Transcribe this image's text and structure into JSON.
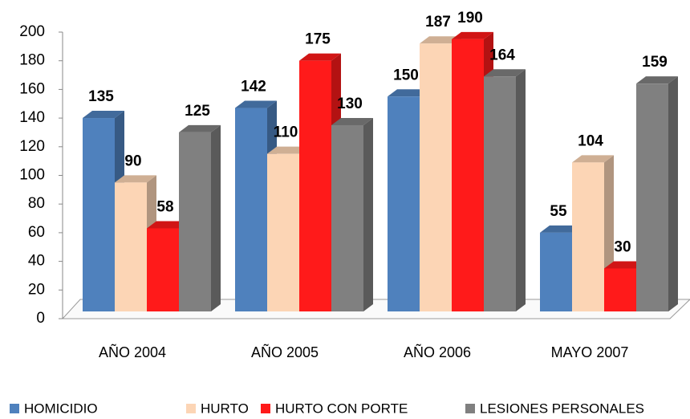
{
  "chart_data": {
    "type": "bar",
    "categories": [
      "AÑO 2004",
      "AÑO 2005",
      "AÑO 2006",
      "MAYO 2007"
    ],
    "series": [
      {
        "name": "HOMICIDIO",
        "color": "#4f81bd",
        "values": [
          135,
          142,
          150,
          55
        ]
      },
      {
        "name": "HURTO",
        "color": "#fcd5b5",
        "values": [
          90,
          110,
          187,
          104
        ]
      },
      {
        "name": "HURTO CON PORTE",
        "color": "#ff1a1a",
        "values": [
          58,
          175,
          190,
          30
        ]
      },
      {
        "name": "LESIONES PERSONALES",
        "color": "#808080",
        "values": [
          125,
          130,
          164,
          159
        ]
      }
    ],
    "ylim": [
      0,
      200
    ],
    "yticks": [
      0,
      20,
      40,
      60,
      80,
      100,
      120,
      140,
      160,
      180,
      200
    ],
    "legend": "bottom"
  }
}
